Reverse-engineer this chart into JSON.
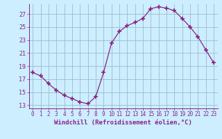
{
  "x": [
    0,
    1,
    2,
    3,
    4,
    5,
    6,
    7,
    8,
    9,
    10,
    11,
    12,
    13,
    14,
    15,
    16,
    17,
    18,
    19,
    20,
    21,
    22,
    23
  ],
  "y": [
    18.0,
    17.5,
    16.3,
    15.3,
    14.5,
    14.0,
    13.5,
    13.2,
    14.3,
    18.0,
    22.5,
    24.3,
    25.2,
    25.7,
    26.3,
    27.8,
    28.1,
    27.9,
    27.5,
    26.3,
    25.0,
    23.5,
    21.5,
    19.5
  ],
  "line_color": "#882288",
  "marker": "+",
  "marker_size": 4,
  "marker_lw": 1.2,
  "line_width": 0.9,
  "bg_color": "#cceeff",
  "grid_color": "#99bbcc",
  "xlabel": "Windchill (Refroidissement éolien,°C)",
  "xlim": [
    -0.5,
    23.5
  ],
  "ylim": [
    12.5,
    28.5
  ],
  "yticks": [
    13,
    15,
    17,
    19,
    21,
    23,
    25,
    27
  ],
  "xticks": [
    0,
    1,
    2,
    3,
    4,
    5,
    6,
    7,
    8,
    9,
    10,
    11,
    12,
    13,
    14,
    15,
    16,
    17,
    18,
    19,
    20,
    21,
    22,
    23
  ],
  "tick_fontsize": 5.5,
  "xlabel_fontsize": 6.5
}
